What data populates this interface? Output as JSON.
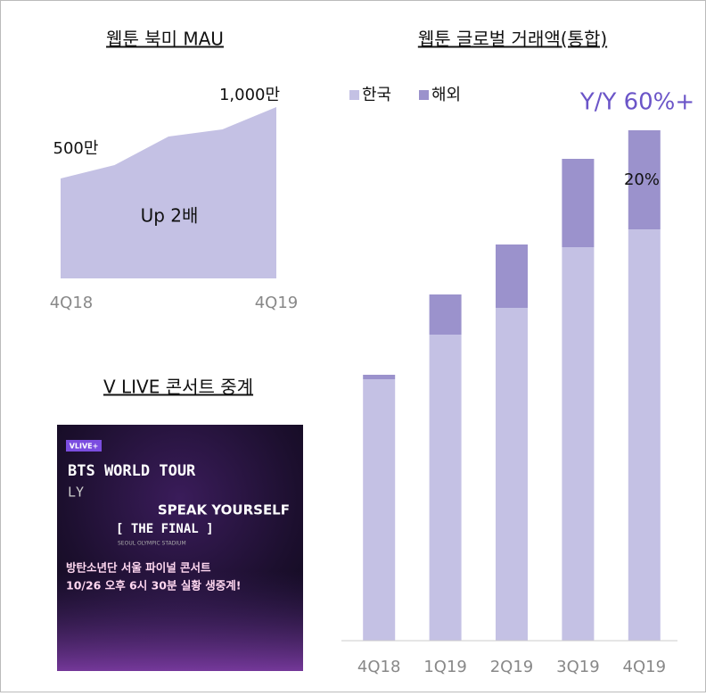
{
  "chart_data": [
    {
      "type": "area",
      "title": "웹툰 북미 MAU",
      "categories": [
        "4Q18",
        null,
        null,
        null,
        "4Q19"
      ],
      "values": [
        500,
        594,
        794,
        844,
        1000
      ],
      "color": "#c4c1e4",
      "ylim": [
        -200,
        1000
      ],
      "annotations": [
        "500만",
        "1,000만",
        "Up 2배"
      ]
    },
    {
      "type": "stacked-bar",
      "title": "웹툰 글로벌 거래액(통합)",
      "categories": [
        "4Q18",
        "1Q19",
        "2Q19",
        "3Q19",
        "4Q19"
      ],
      "series": [
        {
          "name": "한국",
          "color": "#c4c1e4",
          "values": [
            293,
            343,
            373,
            441,
            461
          ]
        },
        {
          "name": "해외",
          "color": "#9b92cc",
          "values": [
            5,
            45,
            71,
            99,
            111
          ]
        }
      ],
      "ylim": [
        0,
        600
      ],
      "legend": "top-left",
      "annotations": [
        "Y/Y 60%+",
        "20%"
      ]
    }
  ],
  "poster": {
    "title": "V LIVE 콘서트 중계",
    "badge": "VLIVE+",
    "line1": "BTS WORLD TOUR",
    "line2": "LY",
    "line3": "SPEAK YOURSELF",
    "line4": "[ THE FINAL ]",
    "line5": "SEOUL OLYMPIC STADIUM",
    "line6": "방탄소년단 서울 파이널 콘서트",
    "line7": "10/26 오후 6시 30분 실황 생중계!"
  }
}
